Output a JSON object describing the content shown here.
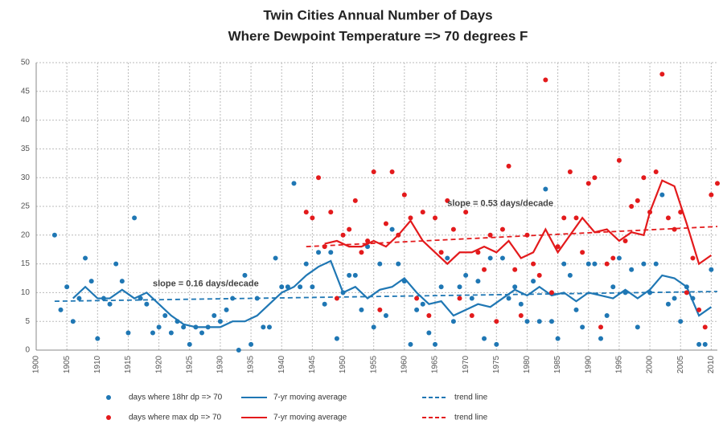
{
  "chart_data": {
    "type": "scatter",
    "title": "Twin Cities Annual Number of Days",
    "subtitle": "Where Dewpoint Temperature => 70 degrees F",
    "xlim": [
      1900,
      2011
    ],
    "ylim": [
      0,
      50
    ],
    "xticks": [
      1900,
      1905,
      1910,
      1915,
      1920,
      1925,
      1930,
      1935,
      1940,
      1945,
      1950,
      1955,
      1960,
      1965,
      1970,
      1975,
      1980,
      1985,
      1990,
      1995,
      2000,
      2005,
      2010
    ],
    "yticks": [
      0,
      5,
      10,
      15,
      20,
      25,
      30,
      35,
      40,
      45,
      50
    ],
    "grid": true,
    "legend": "bottom",
    "annotations": [
      "slope = 0.16 days/decade",
      "slope = 0.53 days/decade"
    ],
    "series": [
      {
        "name": "days where 18hr dp => 70",
        "color": "#1f77b4",
        "mark": "dot",
        "x": [
          1903,
          1904,
          1905,
          1906,
          1907,
          1908,
          1909,
          1910,
          1911,
          1912,
          1913,
          1914,
          1915,
          1916,
          1917,
          1918,
          1919,
          1920,
          1921,
          1922,
          1923,
          1924,
          1925,
          1926,
          1927,
          1928,
          1929,
          1930,
          1931,
          1932,
          1933,
          1934,
          1935,
          1936,
          1937,
          1938,
          1939,
          1940,
          1941,
          1942,
          1943,
          1944,
          1945,
          1946,
          1947,
          1948,
          1949,
          1950,
          1951,
          1952,
          1953,
          1954,
          1955,
          1956,
          1957,
          1958,
          1959,
          1960,
          1961,
          1962,
          1963,
          1964,
          1965,
          1966,
          1967,
          1968,
          1969,
          1970,
          1971,
          1972,
          1973,
          1974,
          1975,
          1976,
          1977,
          1978,
          1979,
          1980,
          1981,
          1982,
          1983,
          1984,
          1985,
          1986,
          1987,
          1988,
          1989,
          1990,
          1991,
          1992,
          1993,
          1994,
          1995,
          1996,
          1997,
          1998,
          1999,
          2000,
          2001,
          2002,
          2003,
          2004,
          2005,
          2006,
          2007,
          2008,
          2009,
          2010
        ],
        "values": [
          20,
          7,
          11,
          5,
          9,
          16,
          12,
          2,
          9,
          8,
          15,
          12,
          3,
          23,
          9,
          8,
          3,
          4,
          6,
          3,
          5,
          4,
          1,
          4,
          3,
          4,
          6,
          5,
          7,
          9,
          0,
          13,
          1,
          9,
          4,
          4,
          16,
          11,
          11,
          29,
          11,
          15,
          11,
          17,
          8,
          17,
          2,
          10,
          13,
          13,
          7,
          18,
          4,
          15,
          6,
          21,
          15,
          12,
          1,
          7,
          8,
          3,
          1,
          11,
          16,
          5,
          11,
          13,
          9,
          12,
          2,
          16,
          1,
          16,
          9,
          11,
          8,
          5,
          12,
          5,
          28,
          5,
          2,
          15,
          13,
          7,
          4,
          15,
          15,
          2,
          6,
          11,
          16,
          10,
          14,
          4,
          15,
          10,
          15,
          27,
          8,
          9,
          5,
          11,
          9,
          1,
          1,
          14
        ]
      },
      {
        "name": "7-yr moving average",
        "color": "#1f77b4",
        "mark": "line",
        "x": [
          1906,
          1908,
          1910,
          1912,
          1914,
          1916,
          1918,
          1920,
          1922,
          1924,
          1926,
          1928,
          1930,
          1932,
          1934,
          1936,
          1938,
          1940,
          1942,
          1944,
          1946,
          1948,
          1950,
          1952,
          1954,
          1956,
          1958,
          1960,
          1962,
          1964,
          1966,
          1968,
          1970,
          1972,
          1974,
          1976,
          1978,
          1980,
          1982,
          1984,
          1986,
          1988,
          1990,
          1992,
          1994,
          1996,
          1998,
          2000,
          2002,
          2004,
          2006,
          2008,
          2010
        ],
        "values": [
          9,
          11,
          9,
          9,
          10.5,
          9,
          10,
          8,
          6,
          4.5,
          4,
          4,
          4,
          5,
          5,
          6,
          8,
          10,
          11,
          13,
          14.5,
          15.5,
          10,
          11,
          9,
          10.5,
          11,
          12.5,
          10,
          8,
          8.5,
          6,
          7,
          8,
          7.5,
          9,
          10.5,
          9.5,
          11,
          9.5,
          10,
          8.5,
          10,
          9.5,
          9,
          10.5,
          9,
          10.5,
          13,
          12.5,
          11,
          6,
          7.5
        ]
      },
      {
        "name": "trend line",
        "color": "#1f77b4",
        "mark": "dashed",
        "x": [
          1903,
          2011
        ],
        "values": [
          8.5,
          10.2
        ]
      },
      {
        "name": "days where max dp => 70",
        "color": "#e31a1c",
        "mark": "dot",
        "x": [
          1944,
          1945,
          1946,
          1947,
          1948,
          1949,
          1950,
          1951,
          1952,
          1953,
          1954,
          1955,
          1956,
          1957,
          1958,
          1959,
          1960,
          1961,
          1962,
          1963,
          1964,
          1965,
          1966,
          1967,
          1968,
          1969,
          1970,
          1971,
          1972,
          1973,
          1974,
          1975,
          1976,
          1977,
          1978,
          1979,
          1980,
          1981,
          1982,
          1983,
          1984,
          1985,
          1986,
          1987,
          1988,
          1989,
          1990,
          1991,
          1992,
          1993,
          1994,
          1995,
          1996,
          1997,
          1998,
          1999,
          2000,
          2001,
          2002,
          2003,
          2004,
          2005,
          2006,
          2007,
          2008,
          2009,
          2010,
          2011
        ],
        "values": [
          24,
          23,
          30,
          18,
          24,
          9,
          20,
          21,
          26,
          17,
          19,
          31,
          7,
          22,
          31,
          20,
          27,
          23,
          9,
          24,
          6,
          23,
          17,
          26,
          21,
          9,
          24,
          6,
          17,
          14,
          20,
          5,
          21,
          32,
          14,
          6,
          20,
          15,
          13,
          47,
          10,
          18,
          23,
          31,
          23,
          17,
          29,
          30,
          4,
          15,
          16,
          33,
          19,
          25,
          26,
          30,
          24,
          31,
          48,
          23,
          21,
          24,
          10,
          16,
          7,
          4,
          27,
          29
        ]
      },
      {
        "name": "7-yr moving average",
        "color": "#e31a1c",
        "mark": "line",
        "x": [
          1947,
          1949,
          1951,
          1953,
          1955,
          1957,
          1959,
          1961,
          1963,
          1965,
          1967,
          1969,
          1971,
          1973,
          1975,
          1977,
          1979,
          1981,
          1983,
          1985,
          1987,
          1989,
          1991,
          1993,
          1995,
          1997,
          1999,
          2000,
          2002,
          2004,
          2006,
          2008,
          2010
        ],
        "values": [
          18.5,
          19,
          18,
          18,
          19,
          18,
          20,
          22.5,
          19,
          17,
          15,
          17,
          17,
          18,
          17,
          19,
          16,
          17,
          21,
          17,
          20,
          23,
          20.5,
          21,
          19,
          20.5,
          20,
          24,
          29.5,
          28.5,
          22,
          15,
          16.5
        ]
      },
      {
        "name": "trend line",
        "color": "#e31a1c",
        "mark": "dashed",
        "x": [
          1944,
          2011
        ],
        "values": [
          18,
          21.5
        ]
      }
    ]
  }
}
